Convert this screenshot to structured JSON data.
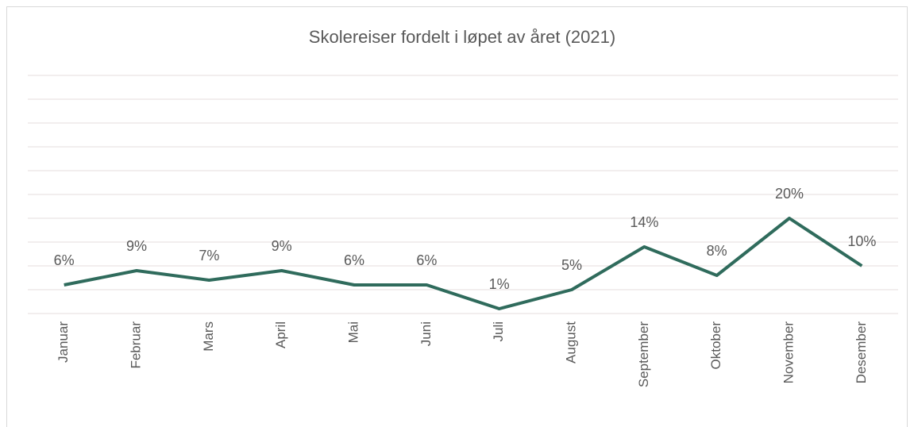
{
  "chart_data": {
    "type": "line",
    "title": "Skolereiser fordelt i løpet av året (2021)",
    "categories": [
      "Januar",
      "Februar",
      "Mars",
      "April",
      "Mai",
      "Juni",
      "Juli",
      "August",
      "September",
      "Oktober",
      "November",
      "Desember"
    ],
    "series": [
      {
        "name": "Skolereiser",
        "color": "#2f6b5c",
        "values": [
          6,
          9,
          7,
          9,
          6,
          6,
          1,
          5,
          14,
          8,
          20,
          10
        ],
        "value_labels": [
          "6%",
          "9%",
          "7%",
          "9%",
          "6%",
          "6%",
          "1%",
          "5%",
          "14%",
          "8%",
          "20%",
          "10%"
        ]
      }
    ],
    "ylim": [
      0,
      50
    ],
    "yticks": [
      0,
      5,
      10,
      15,
      20,
      25,
      30,
      35,
      40,
      45,
      50
    ],
    "ytick_labels": false,
    "grid": true,
    "legend": false
  }
}
